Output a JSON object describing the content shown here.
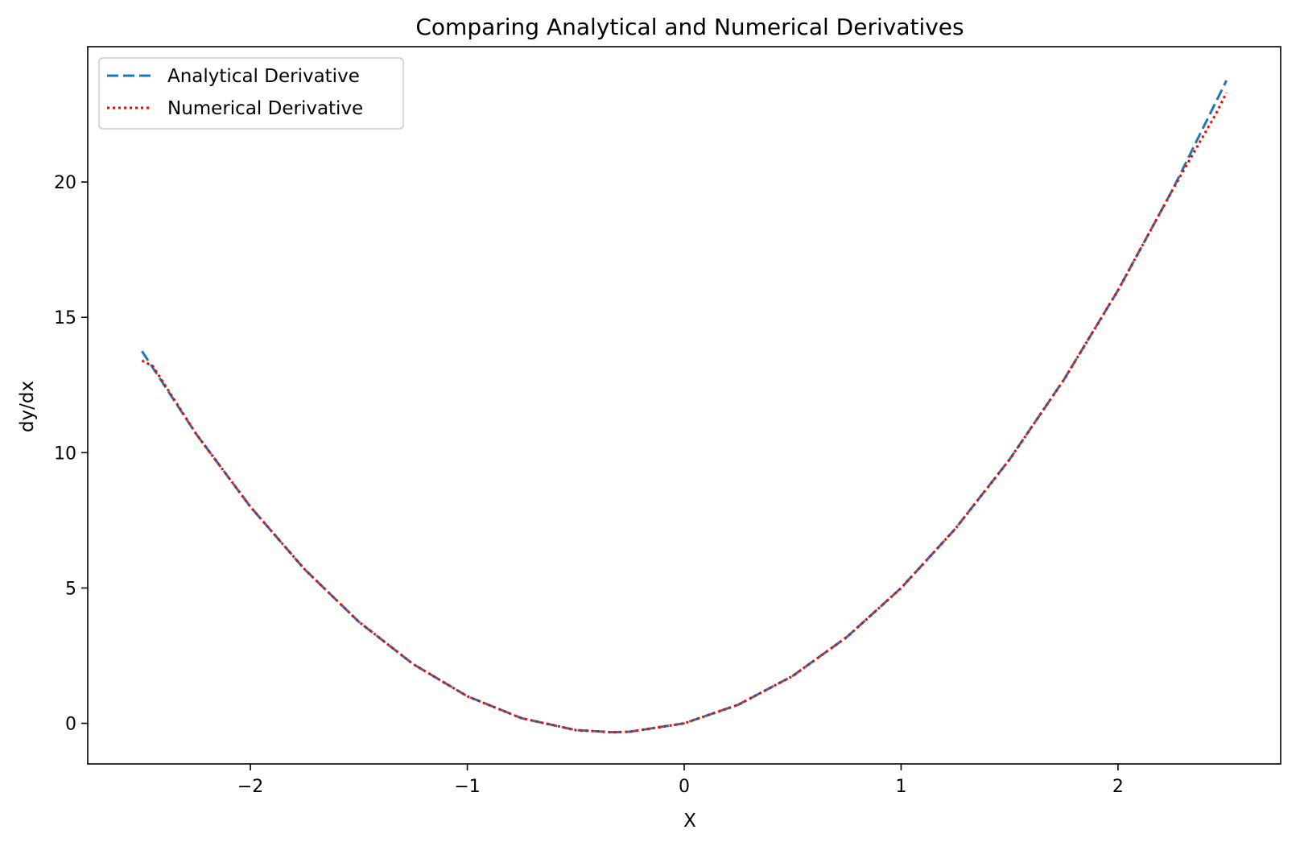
{
  "chart_data": {
    "type": "line",
    "title": "Comparing Analytical and Numerical Derivatives",
    "xlabel": "X",
    "ylabel": "dy/dx",
    "xlim": [
      -2.75,
      2.75
    ],
    "ylim": [
      -1.5,
      25.0
    ],
    "xticks": [
      -2,
      -1,
      0,
      1,
      2
    ],
    "xtick_labels": [
      "−2",
      "−1",
      "0",
      "1",
      "2"
    ],
    "yticks": [
      0,
      5,
      10,
      15,
      20
    ],
    "ytick_labels": [
      "0",
      "5",
      "10",
      "15",
      "20"
    ],
    "grid": false,
    "legend": "top-left",
    "series": [
      {
        "name": "Analytical Derivative",
        "color": "#1f77b4",
        "style": "dashed",
        "x": [
          -2.5,
          -2.25,
          -2.0,
          -1.75,
          -1.5,
          -1.25,
          -1.0,
          -0.75,
          -0.5,
          -0.33,
          -0.25,
          0.0,
          0.25,
          0.5,
          0.75,
          1.0,
          1.25,
          1.5,
          1.75,
          2.0,
          2.25,
          2.5
        ],
        "y": [
          13.75,
          10.69,
          8.0,
          5.69,
          3.75,
          2.19,
          1.0,
          0.19,
          -0.25,
          -0.33,
          -0.31,
          0.0,
          0.69,
          1.75,
          3.19,
          5.0,
          7.19,
          9.75,
          12.69,
          16.0,
          19.69,
          23.75
        ]
      },
      {
        "name": "Numerical Derivative",
        "color": "#ff0000",
        "style": "dotted",
        "x": [
          -2.5,
          -2.45,
          -2.25,
          -2.0,
          -1.75,
          -1.5,
          -1.25,
          -1.0,
          -0.75,
          -0.5,
          -0.33,
          -0.25,
          0.0,
          0.25,
          0.5,
          0.75,
          1.0,
          1.25,
          1.5,
          1.75,
          2.0,
          2.25,
          2.45,
          2.5
        ],
        "y": [
          13.4,
          13.2,
          10.69,
          8.0,
          5.69,
          3.75,
          2.19,
          1.0,
          0.19,
          -0.25,
          -0.33,
          -0.31,
          0.0,
          0.69,
          1.75,
          3.19,
          5.0,
          7.19,
          9.75,
          12.69,
          16.0,
          19.69,
          22.5,
          23.3
        ]
      }
    ]
  }
}
